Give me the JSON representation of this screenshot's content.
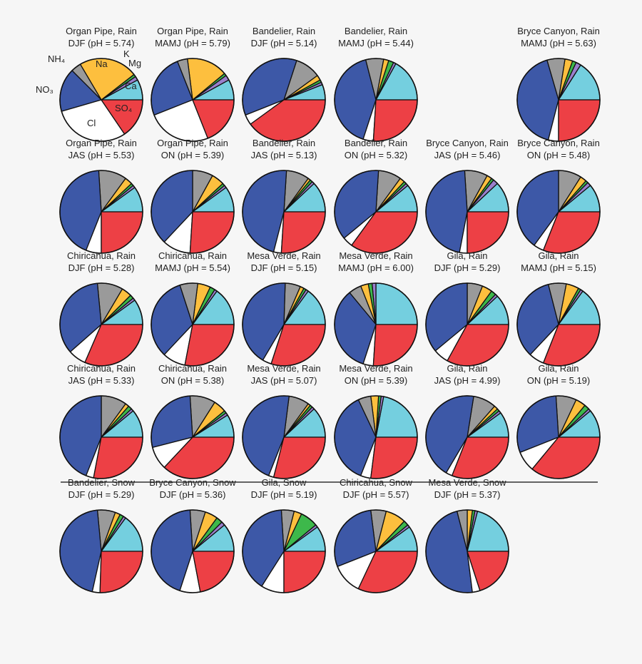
{
  "chart_data": {
    "type": "pie",
    "categories": [
      "Ca",
      "Mg",
      "K",
      "Na",
      "NH₄",
      "NO₃",
      "Cl",
      "SO₄"
    ],
    "colors": {
      "Ca": "#74cfdf",
      "Mg": "#9a7fcc",
      "K": "#3db84b",
      "Na": "#fdbf3e",
      "NH₄": "#9a9a9a",
      "NO₃": "#3d58a7",
      "Cl": "#ffffff",
      "SO₄": "#ed4045"
    },
    "slice_order": "counterclockwise from 3 o'clock",
    "annotations": [
      "Na",
      "K",
      "Mg",
      "NH₄",
      "NO₃",
      "Ca",
      "SO₄",
      "Cl"
    ],
    "pies": [
      {
        "title1": "Organ Pipe, Rain",
        "title2": "DJF (pH = 5.74)",
        "values": [
          8,
          1.5,
          1,
          23,
          4,
          17,
          30,
          15.5
        ]
      },
      {
        "title1": "Organ Pipe, Rain",
        "title2": "MAMJ (pH = 5.79)",
        "values": [
          8,
          2,
          1,
          16,
          4,
          25,
          25,
          19
        ]
      },
      {
        "title1": "Bandelier, Rain",
        "title2": "DJF (pH = 5.14)",
        "values": [
          6,
          1,
          1,
          2,
          10,
          36,
          4,
          40
        ]
      },
      {
        "title1": "Bandelier, Rain",
        "title2": "MAMJ (pH = 5.44)",
        "values": [
          17,
          1,
          2,
          2,
          7,
          41,
          4,
          26
        ]
      },
      {
        "title1": "Bryce Canyon, Rain",
        "title2": "MAMJ (pH = 5.63)",
        "values": [
          16,
          2,
          1.5,
          3,
          7,
          41.5,
          4,
          25
        ]
      },
      {
        "title1": "Organ Pipe, Rain",
        "title2": "JAS (pH = 5.53)",
        "values": [
          10,
          1,
          1,
          3,
          11,
          43,
          6,
          25
        ]
      },
      {
        "title1": "Organ Pipe, Rain",
        "title2": "ON (pH = 5.39)",
        "values": [
          10,
          1,
          1,
          5,
          8,
          38,
          11,
          26
        ]
      },
      {
        "title1": "Bandelier, Rain",
        "title2": "JAS (pH = 5.13)",
        "values": [
          12,
          1,
          1,
          1,
          9,
          47,
          3,
          26
        ]
      },
      {
        "title1": "Bandelier, Rain",
        "title2": "ON (pH = 5.32)",
        "values": [
          11,
          1,
          1,
          2,
          9,
          37,
          4,
          35
        ]
      },
      {
        "title1": "Bryce Canyon, Rain",
        "title2": "JAS (pH = 5.46)",
        "values": [
          12,
          2,
          1,
          2,
          9,
          46,
          3,
          25
        ]
      },
      {
        "title1": "Bryce Canyon, Rain",
        "title2": "ON (pH = 5.48)",
        "values": [
          11,
          1.5,
          1,
          2.5,
          9,
          40,
          4,
          31
        ]
      },
      {
        "title1": "Chiricahua, Rain",
        "title2": "DJF (pH = 5.28)",
        "values": [
          10,
          1,
          1.5,
          4,
          10,
          35,
          7,
          31.5
        ]
      },
      {
        "title1": "Chiricahua, Rain",
        "title2": "MAMJ (pH = 5.54)",
        "values": [
          15,
          1,
          2,
          5,
          7,
          33,
          9,
          28
        ]
      },
      {
        "title1": "Mesa Verde, Rain",
        "title2": "DJF (pH = 5.15)",
        "values": [
          15,
          1,
          1,
          1.5,
          6,
          42,
          3.5,
          30
        ]
      },
      {
        "title1": "Mesa Verde, Rain",
        "title2": "MAMJ (pH = 6.00)",
        "values": [
          25,
          1.5,
          1.5,
          3,
          5,
          34,
          4,
          26
        ]
      },
      {
        "title1": "Gila, Rain",
        "title2": "DJF (pH = 5.29)",
        "values": [
          12,
          1,
          2,
          4,
          6,
          36,
          6,
          33
        ]
      },
      {
        "title1": "Gila, Rain",
        "title2": "MAMJ (pH = 5.15)",
        "values": [
          15,
          1,
          1,
          5,
          7,
          34,
          6,
          31
        ]
      },
      {
        "title1": "Chiricahua, Rain",
        "title2": "JAS (pH = 5.33)",
        "values": [
          11,
          1,
          1.5,
          1.5,
          10,
          44,
          3,
          28
        ]
      },
      {
        "title1": "Chiricahua, Rain",
        "title2": "ON (pH = 5.38)",
        "values": [
          9,
          1,
          1,
          5,
          10,
          28,
          9,
          37
        ]
      },
      {
        "title1": "Mesa Verde, Rain",
        "title2": "JAS (pH = 5.07)",
        "values": [
          12,
          1,
          1,
          1,
          8,
          46,
          2,
          29
        ]
      },
      {
        "title1": "Mesa Verde, Rain",
        "title2": "ON (pH = 5.39)",
        "values": [
          22,
          1,
          1,
          3,
          5,
          37,
          4,
          27
        ]
      },
      {
        "title1": "Gila, Rain",
        "title2": "JAS (pH = 4.99)",
        "values": [
          10,
          1,
          1,
          1.5,
          9,
          44,
          2.5,
          31
        ]
      },
      {
        "title1": "Gila, Rain",
        "title2": "ON (pH = 5.19)",
        "values": [
          11,
          1,
          2,
          4,
          8,
          30,
          8,
          36
        ]
      },
      {
        "title1": "Bandelier, Snow",
        "title2": "DJF (pH = 5.29)",
        "values": [
          15,
          1,
          1.5,
          2,
          7,
          45,
          3,
          25.5
        ]
      },
      {
        "title1": "Bryce Canyon, Snow",
        "title2": "DJF (pH = 5.36)",
        "values": [
          11,
          1.5,
          2.5,
          5,
          6,
          44,
          8,
          22
        ]
      },
      {
        "title1": "Gila, Snow",
        "title2": "DJF (pH = 5.19)",
        "values": [
          10,
          1,
          7,
          3,
          5,
          40,
          9,
          25
        ]
      },
      {
        "title1": "Chiricahua, Snow",
        "title2": "DJF (pH = 5.57)",
        "values": [
          10,
          1,
          2,
          8,
          6,
          29,
          12,
          32
        ]
      },
      {
        "title1": "Mesa Verde, Snow",
        "title2": "DJF (pH = 5.37)",
        "values": [
          21,
          1,
          1,
          2,
          4,
          48,
          3,
          20
        ]
      }
    ]
  }
}
